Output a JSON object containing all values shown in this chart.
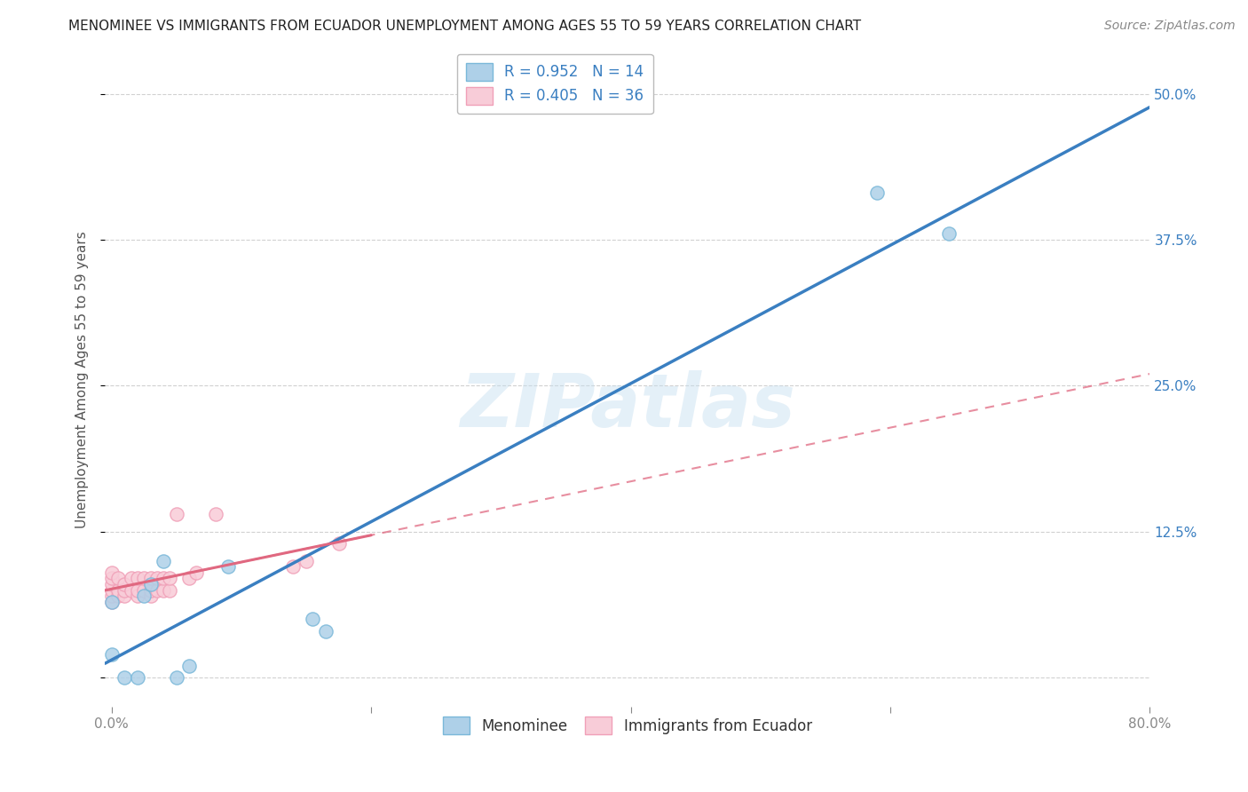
{
  "title": "MENOMINEE VS IMMIGRANTS FROM ECUADOR UNEMPLOYMENT AMONG AGES 55 TO 59 YEARS CORRELATION CHART",
  "source": "Source: ZipAtlas.com",
  "ylabel": "Unemployment Among Ages 55 to 59 years",
  "xlabel": "",
  "xlim": [
    -0.005,
    0.8
  ],
  "ylim": [
    -0.025,
    0.535
  ],
  "xticks": [
    0.0,
    0.2,
    0.4,
    0.6,
    0.8
  ],
  "xtick_labels": [
    "0.0%",
    "",
    "",
    "",
    "80.0%"
  ],
  "yticks": [
    0.0,
    0.125,
    0.25,
    0.375,
    0.5
  ],
  "ytick_right_labels": [
    "",
    "12.5%",
    "25.0%",
    "37.5%",
    "50.0%"
  ],
  "watermark": "ZIPatlas",
  "legend1_label": "R = 0.952   N = 14",
  "legend2_label": "R = 0.405   N = 36",
  "legend_bottom_label1": "Menominee",
  "legend_bottom_label2": "Immigrants from Ecuador",
  "blue_color": "#7ab8d9",
  "blue_fill": "#aed0e8",
  "pink_color": "#f0a0b8",
  "pink_fill": "#f8ccd8",
  "line_blue": "#3a7fc1",
  "line_pink": "#e06880",
  "menominee_x": [
    0.0,
    0.0,
    0.01,
    0.02,
    0.025,
    0.03,
    0.04,
    0.05,
    0.06,
    0.09,
    0.155,
    0.165,
    0.59,
    0.645
  ],
  "menominee_y": [
    0.02,
    0.065,
    0.0,
    0.0,
    0.07,
    0.08,
    0.1,
    0.0,
    0.01,
    0.095,
    0.05,
    0.04,
    0.415,
    0.38
  ],
  "ecuador_x": [
    0.0,
    0.0,
    0.0,
    0.0,
    0.0,
    0.0,
    0.005,
    0.005,
    0.005,
    0.01,
    0.01,
    0.01,
    0.015,
    0.015,
    0.02,
    0.02,
    0.02,
    0.025,
    0.025,
    0.03,
    0.03,
    0.03,
    0.03,
    0.035,
    0.035,
    0.04,
    0.04,
    0.045,
    0.045,
    0.05,
    0.06,
    0.065,
    0.08,
    0.14,
    0.15,
    0.175
  ],
  "ecuador_y": [
    0.065,
    0.07,
    0.075,
    0.08,
    0.085,
    0.09,
    0.07,
    0.075,
    0.085,
    0.07,
    0.075,
    0.08,
    0.075,
    0.085,
    0.07,
    0.075,
    0.085,
    0.075,
    0.085,
    0.07,
    0.075,
    0.08,
    0.085,
    0.075,
    0.085,
    0.075,
    0.085,
    0.075,
    0.085,
    0.14,
    0.085,
    0.09,
    0.14,
    0.095,
    0.1,
    0.115
  ],
  "bg_color": "#ffffff",
  "grid_color": "#cccccc",
  "tick_color": "#888888",
  "axis_label_color": "#555555",
  "right_tick_color": "#3a7fc1",
  "title_fontsize": 11,
  "source_fontsize": 10,
  "label_fontsize": 11,
  "tick_fontsize": 11
}
